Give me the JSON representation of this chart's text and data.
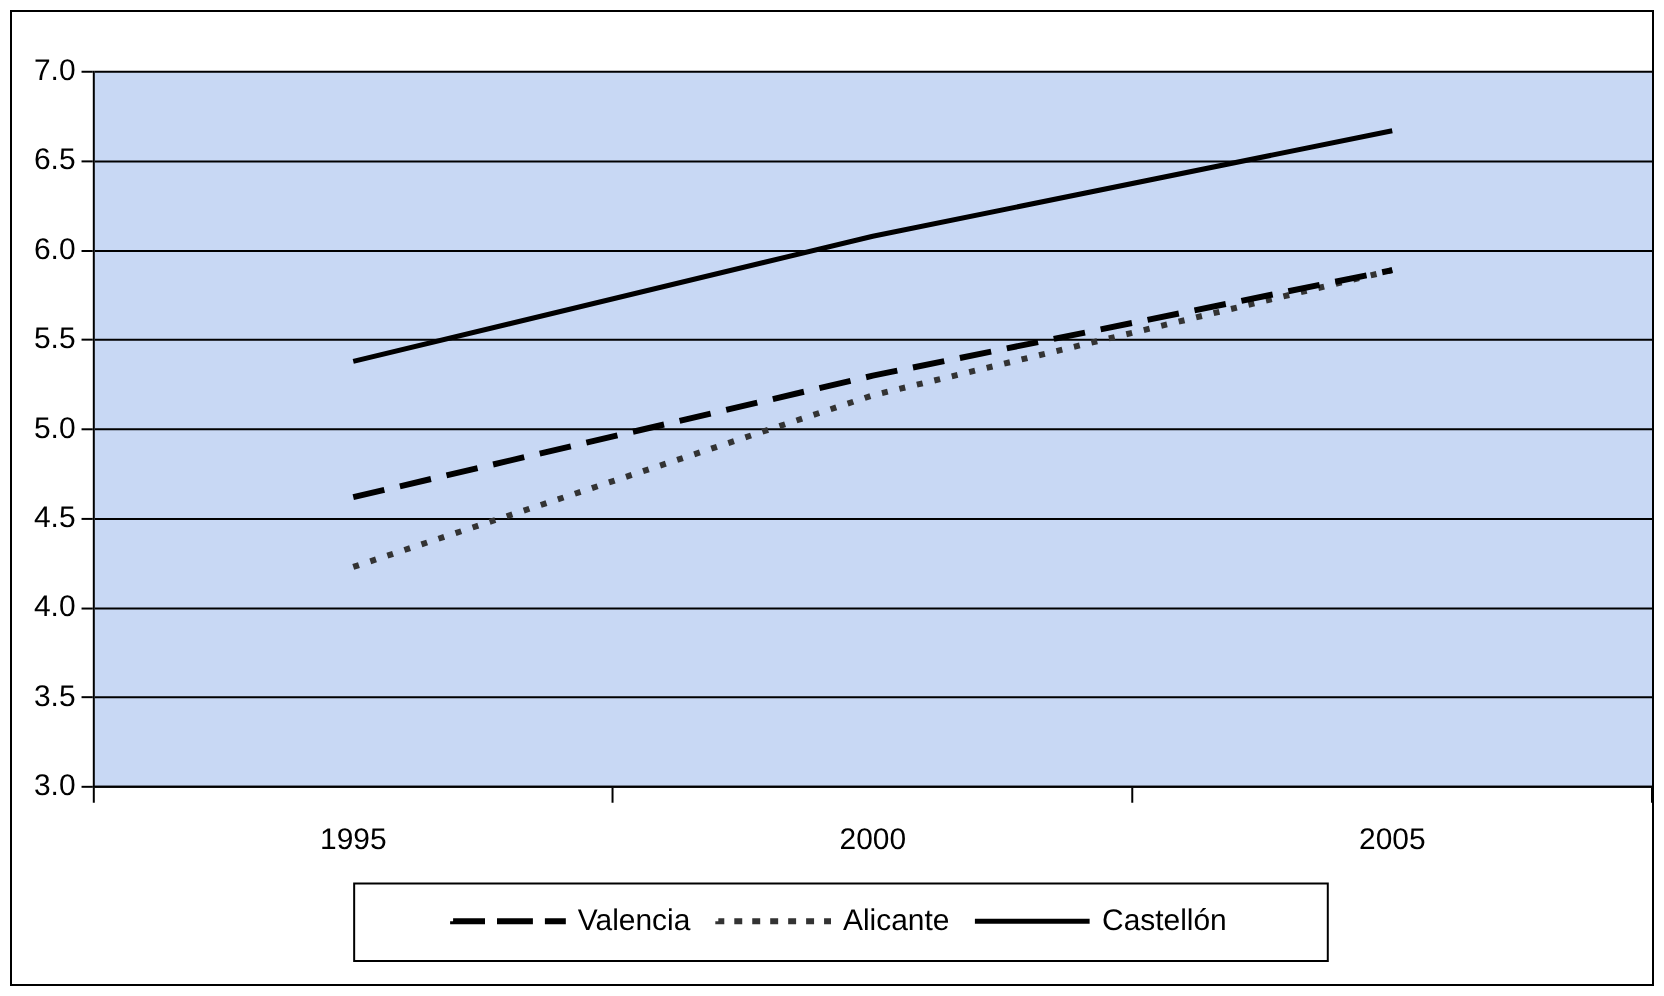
{
  "chart_data": {
    "type": "line",
    "categories": [
      "1995",
      "2000",
      "2005"
    ],
    "series": [
      {
        "name": "Valencia",
        "color": "#000000",
        "line_style": "dashed",
        "values": [
          4.62,
          5.3,
          5.89
        ]
      },
      {
        "name": "Alicante",
        "color": "#333333",
        "line_style": "dotted",
        "values": [
          4.23,
          5.19,
          5.89
        ]
      },
      {
        "name": "Castellón",
        "color": "#000000",
        "line_style": "solid",
        "values": [
          5.38,
          6.08,
          6.67
        ]
      }
    ],
    "ylim": [
      3,
      7
    ],
    "yticks": [
      {
        "value": 3,
        "label": "3.0"
      },
      {
        "value": 3.5,
        "label": "3.5"
      },
      {
        "value": 4,
        "label": "4.0"
      },
      {
        "value": 4.5,
        "label": "4.5"
      },
      {
        "value": 5,
        "label": "5.0"
      },
      {
        "value": 5.5,
        "label": "5.5"
      },
      {
        "value": 6,
        "label": "6.0"
      },
      {
        "value": 6.5,
        "label": "6.5"
      },
      {
        "value": 7,
        "label": "7.0"
      }
    ],
    "grid": "y",
    "legend": "bottom",
    "marker": "none"
  }
}
